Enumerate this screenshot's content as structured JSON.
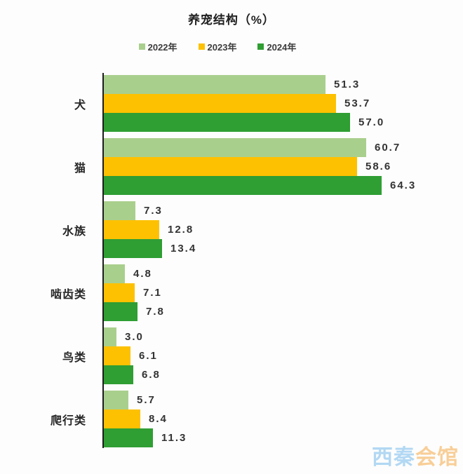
{
  "chart_data": {
    "type": "bar",
    "orientation": "horizontal",
    "title": "养宠结构（%）",
    "categories": [
      "犬",
      "猫",
      "水族",
      "啮齿类",
      "鸟类",
      "爬行类"
    ],
    "series": [
      {
        "name": "2022年",
        "color": "#a9cf8d",
        "values": [
          51.3,
          60.7,
          7.3,
          4.8,
          3.0,
          5.7
        ]
      },
      {
        "name": "2023年",
        "color": "#fdc101",
        "values": [
          53.7,
          58.6,
          12.8,
          7.1,
          6.1,
          8.4
        ]
      },
      {
        "name": "2024年",
        "color": "#2f9e33",
        "values": [
          57.0,
          64.3,
          13.4,
          7.8,
          6.8,
          11.3
        ]
      }
    ],
    "xlim": [
      0,
      66.5
    ],
    "grid": false,
    "legend_position": "top",
    "value_labels": "outside-end, one decimal place",
    "axis_color": "#1c1c1c"
  },
  "watermark": {
    "part1": "西秦",
    "part2": "会馆",
    "color1": "#aad4f2",
    "color2": "#f8c98c"
  }
}
